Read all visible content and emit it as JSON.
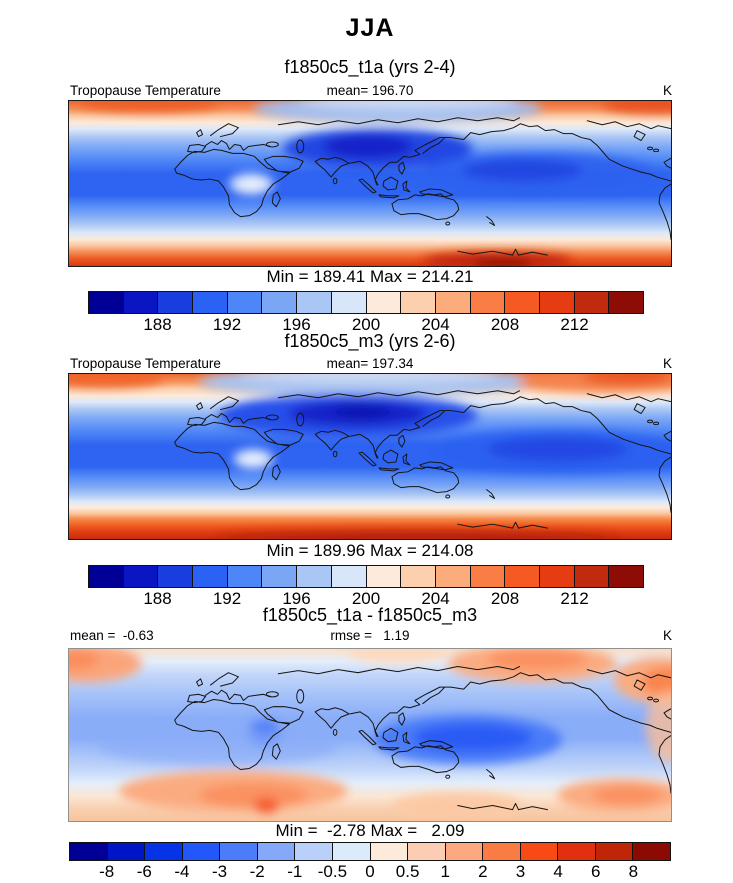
{
  "figure_title": "JJA",
  "panels": [
    {
      "subtitle": "f1850c5_t1a (yrs 2-4)",
      "var_label": "Tropopause Temperature",
      "stat_center": "mean= 196.70",
      "units": "K",
      "minmax": "Min = 189.41 Max = 214.21"
    },
    {
      "subtitle": "f1850c5_m3 (yrs 2-6)",
      "var_label": "Tropopause Temperature",
      "stat_center": "mean= 197.34",
      "units": "K",
      "minmax": "Min = 189.96 Max = 214.08"
    },
    {
      "subtitle": "f1850c5_t1a - f1850c5_m3",
      "stat_left": "mean =  -0.63",
      "stat_center": "rmse =   1.19",
      "units": "K",
      "minmax": "Min =  -2.78 Max =   2.09"
    }
  ],
  "colorbars": {
    "temperature": {
      "colors": [
        "#000096",
        "#0a16c4",
        "#1a3de0",
        "#2b62f3",
        "#4f86f7",
        "#7ba6f6",
        "#a9c6f4",
        "#d8e6f9",
        "#fdeada",
        "#fcd0ae",
        "#fbab7c",
        "#f97e46",
        "#f55a22",
        "#e53c12",
        "#c02a0e",
        "#8d0d06"
      ],
      "tick_labels": [
        "188",
        "192",
        "196",
        "200",
        "204",
        "208",
        "212"
      ],
      "tick_boundaries": [
        2,
        4,
        6,
        8,
        10,
        12,
        14
      ]
    },
    "difference": {
      "colors": [
        "#000096",
        "#0014c8",
        "#0433e8",
        "#2257fa",
        "#4b7df8",
        "#85a9f8",
        "#b8d0fa",
        "#dcebfc",
        "#fdeadb",
        "#fccdb2",
        "#fca981",
        "#fb7b44",
        "#f84a14",
        "#e03010",
        "#c12508",
        "#8c0a04"
      ],
      "tick_labels": [
        "-8",
        "-6",
        "-4",
        "-3",
        "-2",
        "-1",
        "-0.5",
        "0",
        "0.5",
        "1",
        "2",
        "3",
        "4",
        "6",
        "8"
      ],
      "tick_boundaries": [
        1,
        2,
        3,
        4,
        5,
        6,
        7,
        8,
        9,
        10,
        11,
        12,
        13,
        14,
        15
      ]
    }
  },
  "chart_data": [
    {
      "type": "heatmap",
      "season": "JJA",
      "title": "f1850c5_t1a (yrs 2-4)",
      "variable": "Tropopause Temperature",
      "units": "K",
      "projection": "global cylindrical lat-lon map with coastlines",
      "mean": 196.7,
      "min": 189.41,
      "max": 214.21,
      "contour_levels": [
        186,
        188,
        190,
        192,
        194,
        196,
        198,
        200,
        202,
        204,
        206,
        208,
        210,
        212,
        214
      ],
      "palette": "blue-to-red diverging, 16 bins",
      "legend_position": "horizontal colorbar below map",
      "pattern_summary": "Cold blue belt (~190-198 K) across the tropics, coldest (<190 K) over India/Bay of Bengal and the west Pacific; pale spot over central Africa; warm orange-red bands (>204 K) at northern and southern high latitudes with darkest red (>214 K) near the southern edge south of Australia."
    },
    {
      "type": "heatmap",
      "season": "JJA",
      "title": "f1850c5_m3 (yrs 2-6)",
      "variable": "Tropopause Temperature",
      "units": "K",
      "projection": "global cylindrical lat-lon map with coastlines",
      "mean": 197.34,
      "min": 189.96,
      "max": 214.08,
      "contour_levels": [
        186,
        188,
        190,
        192,
        194,
        196,
        198,
        200,
        202,
        204,
        206,
        208,
        210,
        212,
        214
      ],
      "palette": "blue-to-red diverging, 16 bins",
      "legend_position": "horizontal colorbar below map",
      "pattern_summary": "Similar cold tropical belt, with the coldest core (<190 K) shifted over North Africa, Arabia and India; broad blue band across the Pacific; thick warm red band along the southern edge and orange patches at the far northern corners."
    },
    {
      "type": "heatmap",
      "season": "JJA",
      "title": "f1850c5_t1a - f1850c5_m3",
      "variable": "Tropopause Temperature difference",
      "units": "K",
      "projection": "global cylindrical lat-lon map with coastlines",
      "mean": -0.63,
      "rmse": 1.19,
      "min": -2.78,
      "max": 2.09,
      "contour_levels": [
        -8,
        -6,
        -4,
        -3,
        -2,
        -1,
        -0.5,
        0,
        0.5,
        1,
        2,
        3,
        4,
        6,
        8
      ],
      "palette": "blue-to-red diverging, 16 bins",
      "legend_position": "horizontal colorbar below map",
      "pattern_summary": "Mostly weak negative differences (light blue); strongest negative (-2 to -3 K) over the Maritime Continent / west Pacific and a small spot over central Africa; positive patches (+0.5 to +2 K) over the North Pacific, North America, the South Atlantic near South Africa (local max >+2 K) and southern mid-latitude blobs."
    }
  ]
}
